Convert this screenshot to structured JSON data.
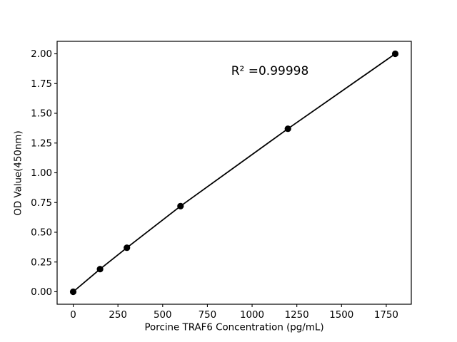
{
  "figure": {
    "background": "#ffffff"
  },
  "chart_data": {
    "type": "line",
    "x": [
      0,
      150,
      300,
      600,
      1200,
      1800
    ],
    "y": [
      0.0,
      0.19,
      0.37,
      0.72,
      1.37,
      2.0
    ],
    "xlabel": "Porcine TRAF6 Concentration (pg/mL)",
    "ylabel": "OD Value(450nm)",
    "annotation": "R² =0.99998",
    "xticks": [
      0,
      250,
      500,
      750,
      1000,
      1250,
      1500,
      1750
    ],
    "yticks": [
      0.0,
      0.25,
      0.5,
      0.75,
      1.0,
      1.25,
      1.5,
      1.75,
      2.0
    ],
    "ytick_decimals": 2,
    "xlim": [
      -90,
      1890
    ],
    "ylim": [
      -0.105,
      2.105
    ],
    "line_color": "#000000",
    "marker_color": "#000000",
    "axis_color": "#000000",
    "grid": false,
    "legend": null
  }
}
